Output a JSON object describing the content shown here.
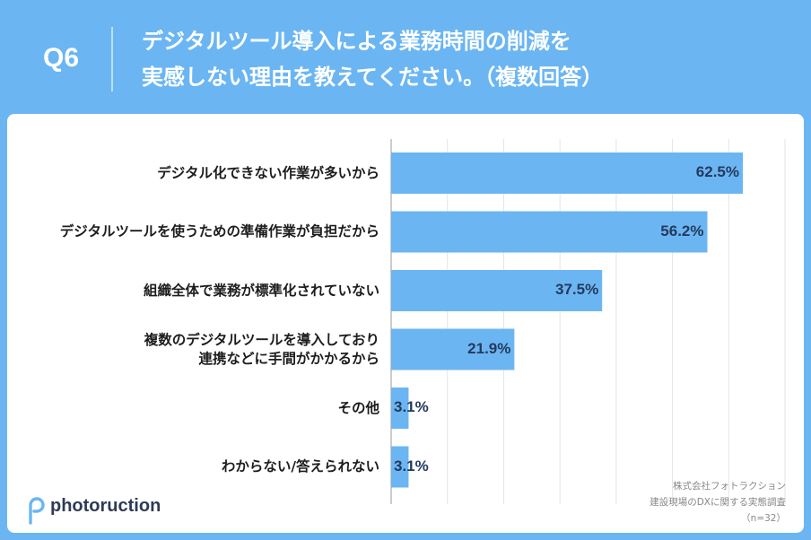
{
  "header": {
    "question_label": "Q6",
    "title_line1": "デジタルツール導入による業務時間の削減を",
    "title_line2": "実感しない理由を教えてください。（複数回答）"
  },
  "chart_data": {
    "type": "bar",
    "orientation": "horizontal",
    "title": "デジタルツール導入による業務時間の削減を実感しない理由を教えてください。（複数回答）",
    "categories": [
      "デジタル化できない作業が多いから",
      "デジタルツールを使うための準備作業が負担だから",
      "組織全体で業務が標準化されていない",
      "複数のデジタルツールを導入しており\n連携などに手間がかかるから",
      "その他",
      "わからない/答えられない"
    ],
    "values": [
      62.5,
      56.2,
      37.5,
      21.9,
      3.1,
      3.1
    ],
    "value_labels": [
      "62.5%",
      "56.2%",
      "37.5%",
      "21.9%",
      "3.1%",
      "3.1%"
    ],
    "xlim": [
      0,
      70
    ],
    "grid": true,
    "bar_color": "#6bb6f2"
  },
  "brand": {
    "name": "photoruction"
  },
  "source": {
    "line1": "株式会社フォトラクション",
    "line2": "建設現場のDXに関する実態調査",
    "line3": "（n=32）"
  },
  "colors": {
    "accent": "#6bb6f2",
    "text": "#1d1d1d",
    "value_text": "#243a5e"
  }
}
